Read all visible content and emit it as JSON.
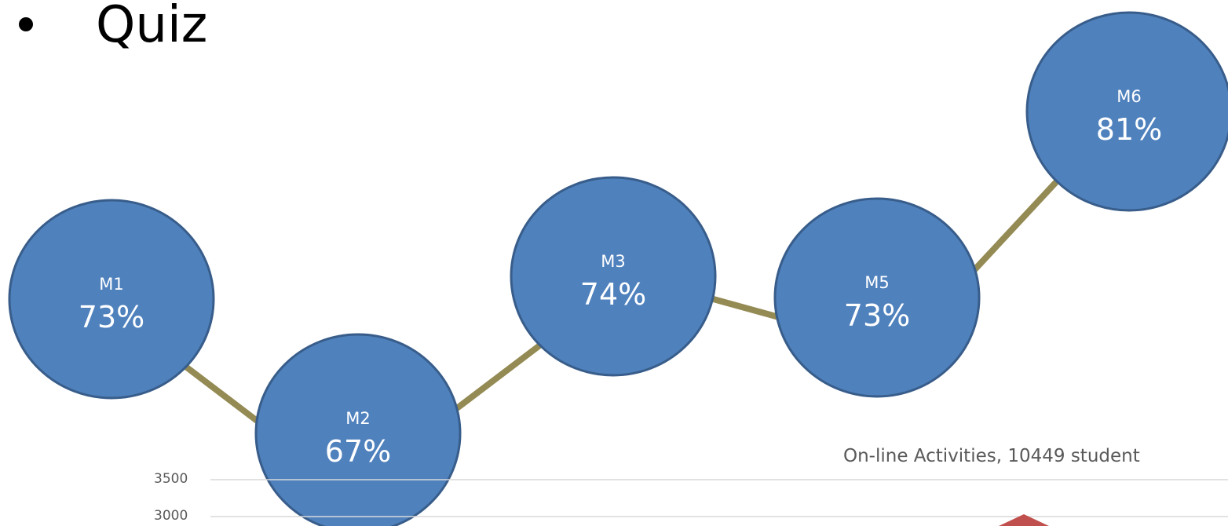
{
  "slide": {
    "bullet_text": "Quiz"
  },
  "diagram": {
    "nodes": [
      {
        "label": "M1",
        "value": "73%"
      },
      {
        "label": "M2",
        "value": "67%"
      },
      {
        "label": "M3",
        "value": "74%"
      },
      {
        "label": "M5",
        "value": "73%"
      },
      {
        "label": "M6",
        "value": "81%"
      }
    ],
    "colors": {
      "node_fill": "#4F81BD",
      "node_stroke": "#385D8A",
      "connector": "#948A54",
      "text": "#FFFFFF"
    }
  },
  "partial_chart": {
    "title": "On-line Activities, 10449 student",
    "y_ticks": [
      "3500",
      "3000"
    ],
    "colors": {
      "gridline": "#D9D9D9",
      "label": "#595959",
      "marker": "#C0504D"
    }
  }
}
